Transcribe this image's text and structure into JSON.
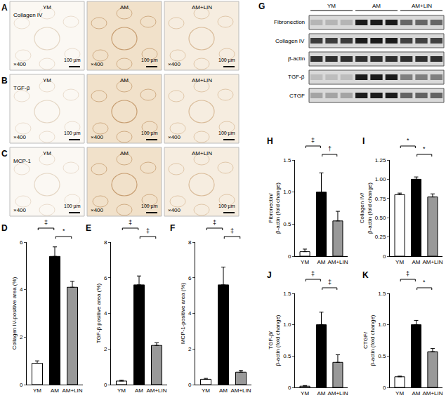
{
  "micrographs": [
    {
      "panel": "A",
      "stain": "Collagen IV",
      "images": [
        "YM",
        "AM",
        "AM+LIN"
      ],
      "magnification": "×400",
      "scale_bar": "100 µm"
    },
    {
      "panel": "B",
      "stain": "TGF-β",
      "images": [
        "YM",
        "AM",
        "AM+LIN"
      ],
      "magnification": "×400",
      "scale_bar": "100 µm"
    },
    {
      "panel": "C",
      "stain": "MCP-1",
      "images": [
        "YM",
        "AM",
        "AM+LIN"
      ],
      "magnification": "×400",
      "scale_bar": "100 µm"
    }
  ],
  "blot": {
    "panel": "G",
    "groups": [
      "YM",
      "AM",
      "AM+LIN"
    ],
    "rows": [
      "Fibronection",
      "Collagen IV",
      "β-actin",
      "TGF-β",
      "CTGF"
    ]
  },
  "chart_data": [
    {
      "panel": "D",
      "type": "bar",
      "categories": [
        "YM",
        "AM",
        "AM+LIN"
      ],
      "values": [
        0.9,
        5.4,
        4.1
      ],
      "errors": [
        0.1,
        0.4,
        0.25
      ],
      "colors": [
        "#ffffff",
        "#000000",
        "#999999"
      ],
      "y_label": "Collagen IV-positive area (%)",
      "ylim": [
        0,
        6
      ],
      "yticks": [
        0,
        2,
        4,
        6
      ],
      "grid": false,
      "significance": [
        {
          "from": "YM",
          "to": "AM",
          "label": "‡"
        },
        {
          "from": "AM",
          "to": "AM+LIN",
          "label": "*"
        }
      ]
    },
    {
      "panel": "E",
      "type": "bar",
      "categories": [
        "YM",
        "AM",
        "AM+LIN"
      ],
      "values": [
        0.2,
        5.6,
        2.2
      ],
      "errors": [
        0.05,
        0.5,
        0.15
      ],
      "colors": [
        "#ffffff",
        "#000000",
        "#999999"
      ],
      "y_label": "TGF-β positive area (%)",
      "ylim": [
        0,
        8
      ],
      "yticks": [
        0,
        2,
        4,
        6,
        8
      ],
      "grid": false,
      "significance": [
        {
          "from": "YM",
          "to": "AM",
          "label": "‡"
        },
        {
          "from": "AM",
          "to": "AM+LIN",
          "label": "‡"
        }
      ]
    },
    {
      "panel": "F",
      "type": "bar",
      "categories": [
        "YM",
        "AM",
        "AM+LIN"
      ],
      "values": [
        0.3,
        5.6,
        0.7
      ],
      "errors": [
        0.05,
        1.0,
        0.1
      ],
      "colors": [
        "#ffffff",
        "#000000",
        "#999999"
      ],
      "y_label": "MCP-1-positive area (%)",
      "ylim": [
        0,
        8
      ],
      "yticks": [
        0,
        2,
        4,
        6,
        8
      ],
      "grid": false,
      "significance": [
        {
          "from": "YM",
          "to": "AM",
          "label": "‡"
        },
        {
          "from": "AM",
          "to": "AM+LIN",
          "label": "‡"
        }
      ]
    },
    {
      "panel": "H",
      "type": "bar",
      "categories": [
        "YM",
        "AM",
        "AM+LIN"
      ],
      "values": [
        0.07,
        1.0,
        0.55
      ],
      "errors": [
        0.04,
        0.3,
        0.15
      ],
      "colors": [
        "#ffffff",
        "#000000",
        "#999999"
      ],
      "y_label": "Fibronectin/\nβ-actin (fold change)",
      "ylim": [
        0,
        1.5
      ],
      "yticks": [
        0,
        0.5,
        {
          "value": 1,
          "label": "1.0"
        },
        1.5
      ],
      "grid": false,
      "significance": [
        {
          "from": "YM",
          "to": "AM",
          "label": "‡"
        },
        {
          "from": "AM",
          "to": "AM+LIN",
          "label": "†"
        }
      ]
    },
    {
      "panel": "I",
      "type": "bar",
      "categories": [
        "YM",
        "AM",
        "AM+LIN"
      ],
      "values": [
        0.8,
        1.0,
        0.77
      ],
      "errors": [
        0.02,
        0.03,
        0.04
      ],
      "colors": [
        "#ffffff",
        "#000000",
        "#999999"
      ],
      "y_label": "Collagen IV/\nβ-actin (fold change)",
      "ylim": [
        0,
        1.25
      ],
      "yticks": [
        0,
        0.25,
        {
          "value": 0.5,
          "label": "0.50"
        },
        0.75,
        {
          "value": 1,
          "label": "1.00"
        },
        1.25
      ],
      "grid": false,
      "significance": [
        {
          "from": "YM",
          "to": "AM",
          "label": "*"
        },
        {
          "from": "AM",
          "to": "AM+LIN",
          "label": "*"
        }
      ]
    },
    {
      "panel": "J",
      "type": "bar",
      "categories": [
        "YM",
        "AM",
        "AM+LIN"
      ],
      "values": [
        0.02,
        1.0,
        0.4
      ],
      "errors": [
        0.01,
        0.2,
        0.12
      ],
      "colors": [
        "#ffffff",
        "#000000",
        "#999999"
      ],
      "y_label": "TGF-β/\nβ-actin (fold change)",
      "ylim": [
        0,
        1.5
      ],
      "yticks": [
        0,
        0.5,
        {
          "value": 1,
          "label": "1.0"
        },
        1.5
      ],
      "grid": false,
      "significance": [
        {
          "from": "YM",
          "to": "AM",
          "label": "‡"
        },
        {
          "from": "AM",
          "to": "AM+LIN",
          "label": "‡"
        }
      ]
    },
    {
      "panel": "K",
      "type": "bar",
      "categories": [
        "YM",
        "AM",
        "AM+LIN"
      ],
      "values": [
        0.17,
        1.0,
        0.57
      ],
      "errors": [
        0.01,
        0.07,
        0.05
      ],
      "colors": [
        "#ffffff",
        "#000000",
        "#999999"
      ],
      "y_label": "CTGF/\nβ-actin (fold change)",
      "ylim": [
        0,
        1.5
      ],
      "yticks": [
        0,
        0.5,
        {
          "value": 1,
          "label": "1.0"
        },
        1.5
      ],
      "grid": false,
      "significance": [
        {
          "from": "YM",
          "to": "AM",
          "label": "‡"
        },
        {
          "from": "AM",
          "to": "AM+LIN",
          "label": "*"
        }
      ]
    }
  ]
}
